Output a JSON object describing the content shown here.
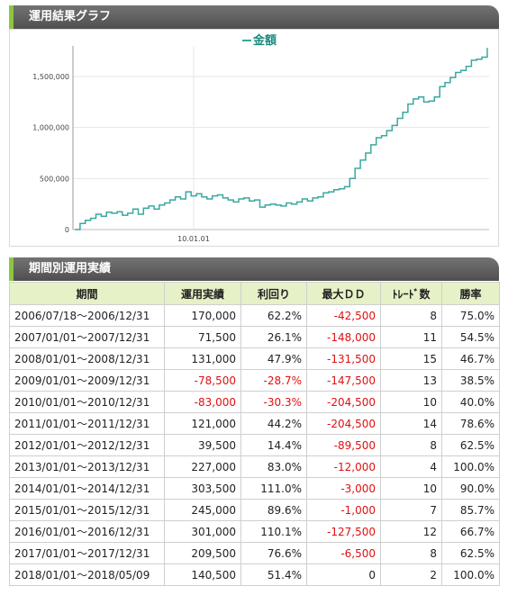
{
  "section1": {
    "title": "運用結果グラフ"
  },
  "section2": {
    "title": "期間別運用実績"
  },
  "chart_data": {
    "type": "line",
    "title": "金額",
    "xlabel": "",
    "ylabel": "",
    "y_ticks": [
      "0",
      "500,000",
      "1,000,000",
      "1,500,000"
    ],
    "x_ticks": [
      "10.01.01"
    ],
    "ylim": [
      0,
      1800000
    ],
    "series_color": "#3aa8a0",
    "series": [
      {
        "name": "金額",
        "values": [
          0,
          60000,
          90000,
          110000,
          150000,
          130000,
          170000,
          160000,
          175000,
          140000,
          160000,
          200000,
          150000,
          210000,
          230000,
          200000,
          240000,
          260000,
          290000,
          320000,
          300000,
          370000,
          330000,
          350000,
          320000,
          300000,
          330000,
          340000,
          310000,
          290000,
          270000,
          300000,
          310000,
          280000,
          290000,
          220000,
          240000,
          250000,
          240000,
          230000,
          260000,
          250000,
          270000,
          300000,
          280000,
          310000,
          320000,
          360000,
          370000,
          390000,
          400000,
          420000,
          500000,
          600000,
          680000,
          750000,
          830000,
          900000,
          920000,
          970000,
          1020000,
          1090000,
          1150000,
          1230000,
          1280000,
          1300000,
          1250000,
          1260000,
          1300000,
          1400000,
          1440000,
          1490000,
          1540000,
          1560000,
          1600000,
          1660000,
          1670000,
          1690000,
          1780000
        ]
      }
    ],
    "grid": true
  },
  "table": {
    "headers": [
      "期間",
      "運用実績",
      "利回り",
      "最大ＤＤ",
      "ﾄﾚｰﾄﾞ数",
      "勝率"
    ],
    "rows": [
      [
        "2006/07/18～2006/12/31",
        "170,000",
        "62.2%",
        "-42,500",
        "8",
        "75.0%"
      ],
      [
        "2007/01/01～2007/12/31",
        "71,500",
        "26.1%",
        "-148,000",
        "11",
        "54.5%"
      ],
      [
        "2008/01/01～2008/12/31",
        "131,000",
        "47.9%",
        "-131,500",
        "15",
        "46.7%"
      ],
      [
        "2009/01/01～2009/12/31",
        "-78,500",
        "-28.7%",
        "-147,500",
        "13",
        "38.5%"
      ],
      [
        "2010/01/01～2010/12/31",
        "-83,000",
        "-30.3%",
        "-204,500",
        "10",
        "40.0%"
      ],
      [
        "2011/01/01～2011/12/31",
        "121,000",
        "44.2%",
        "-204,500",
        "14",
        "78.6%"
      ],
      [
        "2012/01/01～2012/12/31",
        "39,500",
        "14.4%",
        "-89,500",
        "8",
        "62.5%"
      ],
      [
        "2013/01/01～2013/12/31",
        "227,000",
        "83.0%",
        "-12,000",
        "4",
        "100.0%"
      ],
      [
        "2014/01/01～2014/12/31",
        "303,500",
        "111.0%",
        "-3,000",
        "10",
        "90.0%"
      ],
      [
        "2015/01/01～2015/12/31",
        "245,000",
        "89.6%",
        "-1,000",
        "7",
        "85.7%"
      ],
      [
        "2016/01/01～2016/12/31",
        "301,000",
        "110.1%",
        "-127,500",
        "12",
        "66.7%"
      ],
      [
        "2017/01/01～2017/12/31",
        "209,500",
        "76.6%",
        "-6,500",
        "8",
        "62.5%"
      ],
      [
        "2018/01/01～2018/05/09",
        "140,500",
        "51.4%",
        "0",
        "2",
        "100.0%"
      ]
    ]
  }
}
